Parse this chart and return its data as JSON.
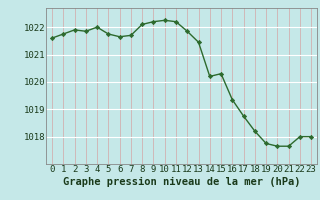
{
  "x": [
    0,
    1,
    2,
    3,
    4,
    5,
    6,
    7,
    8,
    9,
    10,
    11,
    12,
    13,
    14,
    15,
    16,
    17,
    18,
    19,
    20,
    21,
    22,
    23
  ],
  "y": [
    1021.6,
    1021.75,
    1021.9,
    1021.85,
    1022.0,
    1021.75,
    1021.65,
    1021.7,
    1022.1,
    1022.2,
    1022.25,
    1022.2,
    1021.85,
    1021.45,
    1020.2,
    1020.3,
    1019.35,
    1018.75,
    1018.2,
    1017.75,
    1017.65,
    1017.65,
    1018.0,
    1018.0
  ],
  "line_color": "#2d6a2d",
  "marker_color": "#2d6a2d",
  "bg_color": "#c5e8e8",
  "grid_h_color": "#ffffff",
  "grid_v_color": "#d0b8b8",
  "xlabel": "Graphe pression niveau de la mer (hPa)",
  "xlabel_fontsize": 7.5,
  "tick_fontsize": 6.5,
  "yticks": [
    1018,
    1019,
    1020,
    1021,
    1022
  ],
  "ylim": [
    1017.0,
    1022.7
  ],
  "xlim": [
    -0.5,
    23.5
  ]
}
